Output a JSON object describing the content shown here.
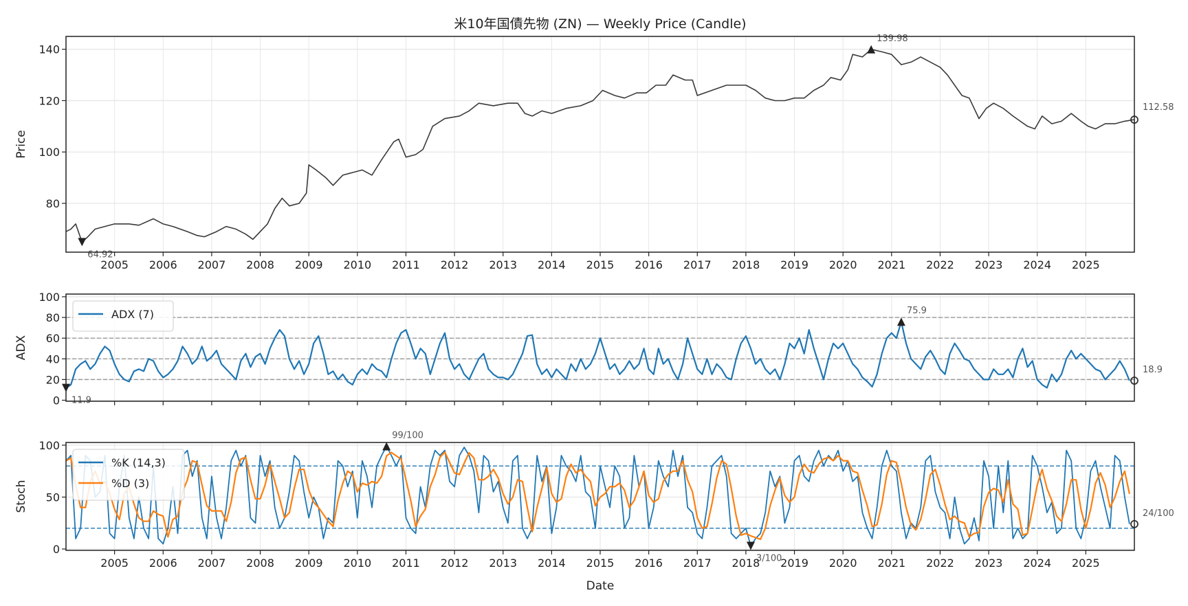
{
  "title": "米10年国債先物 (ZN) — Weekly Price (Candle)",
  "xlabel": "Date",
  "colors": {
    "price": "#3a3a3a",
    "adx": "#1f77b4",
    "k": "#1f77b4",
    "d": "#ff7f0e",
    "grid": "#e6e6e6",
    "ref": "#999999"
  },
  "chart_data": [
    {
      "type": "line",
      "panel": "price",
      "ylabel": "Price",
      "xlim": [
        2004.0,
        2026.0
      ],
      "ylim": [
        61,
        145
      ],
      "yticks": [
        80,
        100,
        120,
        140
      ],
      "xticks": [
        2005,
        2006,
        2007,
        2008,
        2009,
        2010,
        2011,
        2012,
        2013,
        2014,
        2015,
        2016,
        2017,
        2018,
        2019,
        2020,
        2021,
        2022,
        2023,
        2024,
        2025
      ],
      "grid": true,
      "series": [
        {
          "name": "Price",
          "x": [
            2004.0,
            2004.1,
            2004.2,
            2004.33,
            2004.45,
            2004.6,
            2004.8,
            2005.0,
            2005.3,
            2005.5,
            2005.8,
            2006.0,
            2006.2,
            2006.5,
            2006.7,
            2006.85,
            2007.1,
            2007.3,
            2007.5,
            2007.7,
            2007.85,
            2008.0,
            2008.15,
            2008.3,
            2008.45,
            2008.6,
            2008.8,
            2008.95,
            2009.0,
            2009.15,
            2009.35,
            2009.5,
            2009.7,
            2009.9,
            2010.1,
            2010.3,
            2010.5,
            2010.75,
            2010.85,
            2011.0,
            2011.2,
            2011.35,
            2011.55,
            2011.8,
            2012.1,
            2012.3,
            2012.5,
            2012.8,
            2013.1,
            2013.3,
            2013.45,
            2013.6,
            2013.8,
            2014.0,
            2014.3,
            2014.6,
            2014.85,
            2015.05,
            2015.3,
            2015.5,
            2015.75,
            2015.95,
            2016.15,
            2016.35,
            2016.5,
            2016.75,
            2016.9,
            2017.0,
            2017.3,
            2017.6,
            2017.8,
            2018.0,
            2018.2,
            2018.4,
            2018.6,
            2018.8,
            2019.0,
            2019.2,
            2019.4,
            2019.6,
            2019.75,
            2019.95,
            2020.1,
            2020.2,
            2020.4,
            2020.58,
            2020.8,
            2021.0,
            2021.2,
            2021.4,
            2021.6,
            2021.8,
            2022.0,
            2022.15,
            2022.3,
            2022.45,
            2022.6,
            2022.8,
            2022.95,
            2023.1,
            2023.3,
            2023.5,
            2023.65,
            2023.8,
            2023.95,
            2024.1,
            2024.3,
            2024.5,
            2024.7,
            2024.9,
            2025.05,
            2025.2,
            2025.4,
            2025.6,
            2025.8,
            2025.99
          ],
          "y": [
            69,
            70,
            72,
            64.92,
            67,
            70,
            71,
            72,
            72,
            71.5,
            74,
            72,
            71,
            69,
            67.5,
            67,
            69,
            71,
            70,
            68,
            66,
            69,
            72,
            78,
            82,
            79,
            80,
            84,
            95,
            93,
            90,
            87,
            91,
            92,
            93,
            91,
            97,
            104,
            105,
            98,
            99,
            101,
            110,
            113,
            114,
            116,
            119,
            118,
            119,
            119,
            115,
            114,
            116,
            115,
            117,
            118,
            120,
            124,
            122,
            121,
            123,
            123,
            126,
            126,
            130,
            128,
            128,
            122,
            124,
            126,
            126,
            126,
            124,
            121,
            120,
            120,
            121,
            121,
            124,
            126,
            129,
            128,
            132,
            138,
            137,
            139.98,
            139,
            138,
            134,
            135,
            137,
            135,
            133,
            130,
            126,
            122,
            121,
            113,
            117,
            119,
            117,
            114,
            112,
            110,
            109,
            114,
            111,
            112,
            115,
            112,
            110,
            109,
            111,
            111,
            112,
            112.58
          ]
        }
      ],
      "annotations": [
        {
          "label": "139.98",
          "x": 2020.58,
          "y": 139.98,
          "kind": "max"
        },
        {
          "label": "64.92",
          "x": 2004.33,
          "y": 64.92,
          "kind": "min"
        },
        {
          "label": "112.58",
          "x": 2025.99,
          "y": 112.58,
          "kind": "last"
        }
      ]
    },
    {
      "type": "line",
      "panel": "adx",
      "ylabel": "ADX",
      "xlim": [
        2004.0,
        2026.0
      ],
      "ylim": [
        -1,
        102.6
      ],
      "yticks": [
        0,
        20,
        40,
        60,
        80,
        100
      ],
      "ref_lines": [
        20,
        40,
        60,
        80
      ],
      "legend": {
        "entries": [
          "ADX (7)"
        ],
        "placement": "upper-left"
      },
      "x_start": 2004.0,
      "x_step": 0.1,
      "series": [
        {
          "name": "ADX (7)",
          "values": [
            11.9,
            15,
            30,
            35,
            38,
            30,
            35,
            45,
            52,
            48,
            35,
            25,
            20,
            18,
            28,
            30,
            28,
            40,
            38,
            28,
            22,
            25,
            30,
            38,
            52,
            45,
            35,
            40,
            52,
            38,
            42,
            48,
            35,
            30,
            25,
            20,
            38,
            45,
            32,
            42,
            45,
            35,
            50,
            60,
            68,
            62,
            40,
            30,
            38,
            25,
            35,
            55,
            62,
            45,
            25,
            28,
            20,
            25,
            18,
            15,
            25,
            30,
            25,
            35,
            30,
            28,
            22,
            40,
            55,
            65,
            68,
            55,
            40,
            50,
            45,
            25,
            40,
            55,
            65,
            40,
            30,
            35,
            25,
            20,
            30,
            40,
            45,
            30,
            25,
            22,
            22,
            20,
            25,
            35,
            45,
            62,
            63,
            35,
            25,
            30,
            22,
            30,
            25,
            20,
            35,
            28,
            40,
            30,
            35,
            45,
            60,
            45,
            30,
            35,
            25,
            30,
            38,
            30,
            35,
            50,
            30,
            25,
            50,
            35,
            40,
            28,
            20,
            35,
            60,
            45,
            30,
            25,
            40,
            25,
            35,
            30,
            22,
            20,
            40,
            55,
            62,
            50,
            35,
            40,
            30,
            25,
            30,
            20,
            35,
            55,
            50,
            60,
            45,
            68,
            50,
            35,
            20,
            40,
            55,
            50,
            55,
            45,
            35,
            30,
            22,
            18,
            13,
            25,
            45,
            60,
            65,
            60,
            75.9,
            55,
            40,
            35,
            30,
            42,
            48,
            40,
            30,
            25,
            45,
            55,
            48,
            40,
            38,
            30,
            25,
            20,
            20,
            30,
            25,
            25,
            30,
            22,
            40,
            50,
            32,
            38,
            20,
            15,
            12,
            25,
            18,
            25,
            40,
            48,
            40,
            45,
            40,
            35,
            30,
            28,
            20,
            25,
            30,
            38,
            30,
            18.9
          ]
        }
      ],
      "annotations": [
        {
          "label": "75.9",
          "x": 2021.2,
          "y": 75.9,
          "kind": "max"
        },
        {
          "label": "11.9",
          "x": 2004.0,
          "y": 11.9,
          "kind": "min"
        },
        {
          "label": "18.9",
          "x": 2025.9,
          "y": 18.9,
          "kind": "last"
        }
      ]
    },
    {
      "type": "line",
      "panel": "stoch",
      "ylabel": "Stoch",
      "xlim": [
        2004.0,
        2026.0
      ],
      "ylim": [
        -1.3,
        102.6
      ],
      "yticks": [
        0,
        50,
        100
      ],
      "ref_lines": [
        20,
        80
      ],
      "legend": {
        "entries": [
          "%K (14,3)",
          "%D (3)"
        ],
        "placement": "upper-left"
      },
      "d_period": 3,
      "x_start": 2004.0,
      "x_step": 0.1,
      "series": [
        {
          "name": "%K (14,3)",
          "values": [
            85,
            90,
            10,
            20,
            90,
            85,
            50,
            55,
            90,
            15,
            10,
            60,
            90,
            30,
            10,
            50,
            20,
            10,
            80,
            10,
            5,
            20,
            60,
            15,
            90,
            95,
            70,
            85,
            30,
            10,
            70,
            30,
            10,
            40,
            85,
            95,
            80,
            90,
            30,
            25,
            90,
            70,
            85,
            40,
            20,
            30,
            55,
            90,
            85,
            55,
            30,
            50,
            40,
            10,
            30,
            25,
            85,
            80,
            60,
            75,
            30,
            85,
            70,
            40,
            80,
            90,
            99,
            90,
            80,
            90,
            30,
            20,
            15,
            60,
            40,
            80,
            95,
            90,
            95,
            65,
            60,
            90,
            98,
            90,
            75,
            35,
            90,
            85,
            55,
            65,
            40,
            25,
            85,
            90,
            20,
            10,
            20,
            90,
            65,
            80,
            15,
            40,
            90,
            80,
            75,
            65,
            90,
            55,
            50,
            20,
            80,
            60,
            40,
            80,
            70,
            20,
            30,
            90,
            60,
            75,
            20,
            40,
            85,
            70,
            60,
            95,
            70,
            90,
            40,
            35,
            15,
            10,
            40,
            80,
            85,
            90,
            70,
            15,
            10,
            15,
            20,
            3,
            10,
            15,
            35,
            75,
            60,
            70,
            25,
            40,
            85,
            90,
            70,
            65,
            85,
            95,
            80,
            90,
            85,
            95,
            75,
            85,
            65,
            70,
            35,
            20,
            10,
            40,
            80,
            95,
            80,
            75,
            35,
            10,
            25,
            20,
            40,
            85,
            90,
            55,
            40,
            35,
            10,
            50,
            20,
            5,
            10,
            30,
            8,
            85,
            70,
            20,
            80,
            35,
            85,
            10,
            20,
            10,
            15,
            90,
            80,
            60,
            35,
            45,
            15,
            20,
            95,
            85,
            20,
            10,
            30,
            75,
            85,
            60,
            40,
            20,
            90,
            85,
            50,
            24
          ]
        }
      ],
      "annotations": [
        {
          "label": "99/100",
          "x": 2010.6,
          "y": 99,
          "kind": "max"
        },
        {
          "label": "3/100",
          "x": 2018.1,
          "y": 3,
          "kind": "min"
        },
        {
          "label": "24/100",
          "x": 2025.9,
          "y": 24,
          "kind": "last"
        }
      ]
    }
  ]
}
